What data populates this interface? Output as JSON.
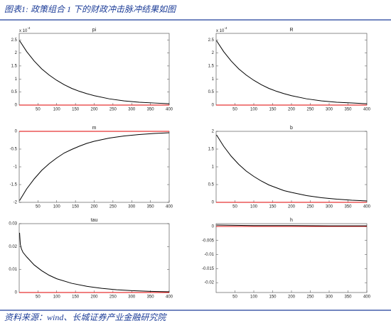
{
  "header": {
    "title": "图表1: 政策组合 1 下的财政冲击脉冲结果如图"
  },
  "footer": {
    "source": "资料来源：wind、长城证券产业金融研究院"
  },
  "chart_data": [
    {
      "type": "line",
      "title": "pi",
      "y_multiplier": "x 10",
      "y_exponent": "-4",
      "x": [
        1,
        20,
        40,
        60,
        80,
        100,
        120,
        140,
        160,
        180,
        200,
        240,
        280,
        320,
        360,
        400
      ],
      "values": [
        2.47,
        2.05,
        1.69,
        1.39,
        1.15,
        0.95,
        0.78,
        0.64,
        0.53,
        0.44,
        0.36,
        0.24,
        0.16,
        0.11,
        0.08,
        0.05
      ],
      "color": "#000000",
      "baseline": {
        "value": 0,
        "color": "#e00000"
      },
      "xlim": [
        0,
        400
      ],
      "xticks": [
        50,
        100,
        150,
        200,
        250,
        300,
        350,
        400
      ],
      "ylim": [
        0,
        2.75
      ],
      "yticks": [
        0,
        0.5,
        1,
        1.5,
        2,
        2.5
      ]
    },
    {
      "type": "line",
      "title": "R",
      "y_multiplier": "x 10",
      "y_exponent": "-4",
      "x": [
        1,
        20,
        40,
        60,
        80,
        100,
        120,
        140,
        160,
        180,
        200,
        240,
        280,
        320,
        360,
        400
      ],
      "values": [
        2.47,
        2.05,
        1.69,
        1.39,
        1.15,
        0.95,
        0.78,
        0.64,
        0.53,
        0.44,
        0.36,
        0.24,
        0.16,
        0.11,
        0.08,
        0.05
      ],
      "color": "#000000",
      "baseline": {
        "value": 0,
        "color": "#e00000"
      },
      "xlim": [
        0,
        400
      ],
      "xticks": [
        50,
        100,
        150,
        200,
        250,
        300,
        350,
        400
      ],
      "ylim": [
        0,
        2.75
      ],
      "yticks": [
        0,
        0.5,
        1,
        1.5,
        2,
        2.5
      ]
    },
    {
      "type": "line",
      "title": "m",
      "x": [
        1,
        20,
        40,
        60,
        80,
        100,
        120,
        140,
        160,
        180,
        200,
        240,
        280,
        320,
        360,
        400
      ],
      "values": [
        -1.95,
        -1.62,
        -1.34,
        -1.1,
        -0.91,
        -0.75,
        -0.61,
        -0.51,
        -0.42,
        -0.34,
        -0.28,
        -0.19,
        -0.13,
        -0.09,
        -0.06,
        -0.04
      ],
      "color": "#000000",
      "baseline": {
        "value": 0,
        "color": "#e00000"
      },
      "xlim": [
        0,
        400
      ],
      "xticks": [
        50,
        100,
        150,
        200,
        250,
        300,
        350,
        400
      ],
      "ylim": [
        -2,
        0
      ],
      "yticks": [
        -2,
        -1.5,
        -1,
        -0.5,
        0
      ]
    },
    {
      "type": "line",
      "title": "b",
      "x": [
        1,
        20,
        40,
        60,
        80,
        100,
        120,
        140,
        160,
        180,
        200,
        240,
        280,
        320,
        360,
        400
      ],
      "values": [
        1.9,
        1.58,
        1.3,
        1.07,
        0.88,
        0.73,
        0.6,
        0.49,
        0.41,
        0.33,
        0.28,
        0.19,
        0.13,
        0.09,
        0.06,
        0.04
      ],
      "color": "#000000",
      "baseline": {
        "value": 0,
        "color": "#e00000"
      },
      "xlim": [
        0,
        400
      ],
      "xticks": [
        50,
        100,
        150,
        200,
        250,
        300,
        350,
        400
      ],
      "ylim": [
        0,
        2
      ],
      "yticks": [
        0,
        0.5,
        1,
        1.5,
        2
      ]
    },
    {
      "type": "line",
      "title": "tau",
      "x": [
        1,
        3,
        6,
        10,
        20,
        40,
        60,
        80,
        100,
        140,
        180,
        220,
        260,
        300,
        350,
        400
      ],
      "values": [
        0.026,
        0.021,
        0.019,
        0.0175,
        0.0155,
        0.012,
        0.0095,
        0.0075,
        0.006,
        0.004,
        0.0027,
        0.0018,
        0.0012,
        0.0008,
        0.0005,
        0.0003
      ],
      "color": "#000000",
      "baseline": {
        "value": 0,
        "color": "#e00000"
      },
      "xlim": [
        0,
        400
      ],
      "xticks": [
        50,
        100,
        150,
        200,
        250,
        300,
        350,
        400
      ],
      "ylim": [
        0,
        0.03
      ],
      "yticks": [
        0,
        0.01,
        0.02,
        0.03
      ]
    },
    {
      "type": "line",
      "title": "h",
      "x": [
        1,
        50,
        100,
        200,
        300,
        400
      ],
      "values": [
        0.0005,
        0.0004,
        0.0003,
        0.0003,
        0.0002,
        0.0002
      ],
      "color": "#000000",
      "baseline": {
        "value": 0,
        "color": "#e00000"
      },
      "xlim": [
        0,
        400
      ],
      "xticks": [
        50,
        100,
        150,
        200,
        250,
        300,
        350,
        400
      ],
      "ylim": [
        -0.0235,
        0.001
      ],
      "yticks": [
        -0.02,
        -0.015,
        -0.01,
        -0.005,
        0
      ]
    }
  ]
}
